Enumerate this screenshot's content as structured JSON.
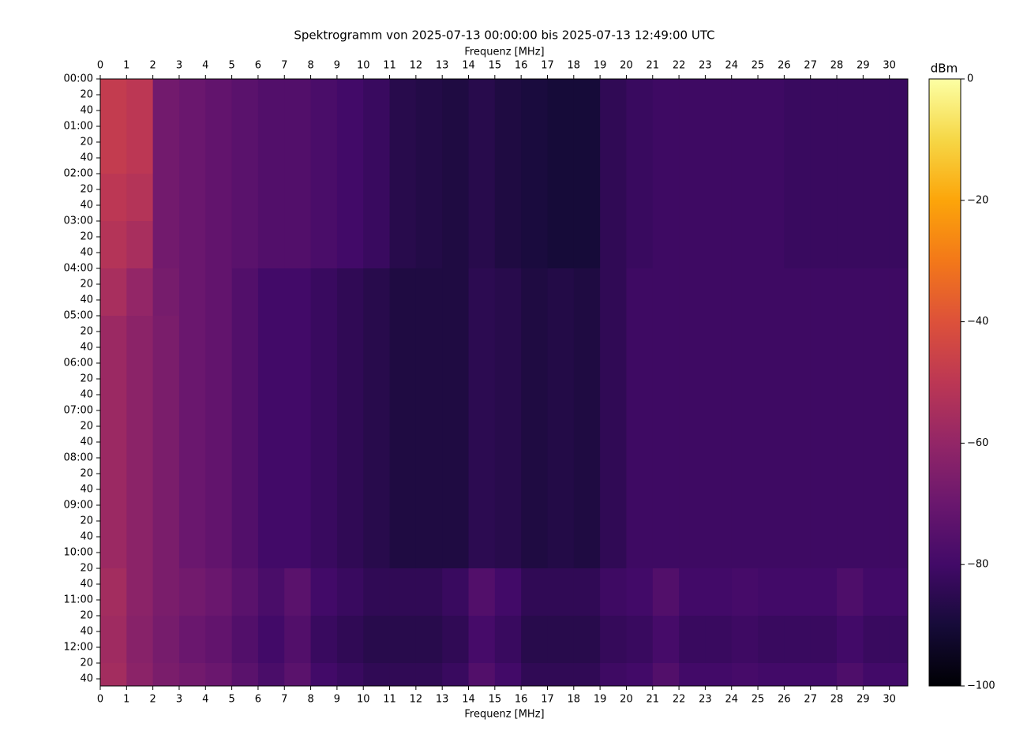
{
  "chart_data": {
    "type": "heatmap",
    "title": "Spektrogramm von 2025-07-13 00:00:00 bis 2025-07-13 12:49:00 UTC",
    "xlabel": "Frequenz [MHz]",
    "xlabel_top": "Frequenz [MHz]",
    "colorbar_label": "dBm",
    "colormap": "inferno",
    "y_inverted": true,
    "x_bins": [
      0,
      1,
      2,
      3,
      4,
      5,
      6,
      7,
      8,
      9,
      10,
      11,
      12,
      13,
      14,
      15,
      16,
      17,
      18,
      19,
      20,
      21,
      22,
      23,
      24,
      25,
      26,
      27,
      28,
      29,
      30,
      30.7
    ],
    "y_bins": [
      0,
      60,
      120,
      180,
      240,
      300,
      360,
      420,
      480,
      540,
      600,
      620,
      680,
      740,
      769
    ],
    "values": [
      [
        -48,
        -50,
        -68,
        -70,
        -72,
        -74,
        -76,
        -76,
        -78,
        -80,
        -82,
        -86,
        -87,
        -88,
        -86,
        -88,
        -89,
        -90,
        -90,
        -84,
        -82,
        -81,
        -81,
        -81,
        -81,
        -81,
        -82,
        -82,
        -82,
        -82,
        -82
      ],
      [
        -48,
        -50,
        -68,
        -70,
        -72,
        -74,
        -76,
        -76,
        -78,
        -80,
        -82,
        -86,
        -87,
        -88,
        -86,
        -88,
        -89,
        -90,
        -90,
        -84,
        -82,
        -81,
        -81,
        -81,
        -81,
        -81,
        -82,
        -82,
        -82,
        -82,
        -82
      ],
      [
        -50,
        -52,
        -68,
        -70,
        -72,
        -74,
        -76,
        -76,
        -78,
        -80,
        -82,
        -86,
        -87,
        -88,
        -86,
        -88,
        -89,
        -90,
        -90,
        -84,
        -82,
        -81,
        -81,
        -81,
        -81,
        -81,
        -82,
        -82,
        -82,
        -82,
        -82
      ],
      [
        -52,
        -55,
        -68,
        -70,
        -72,
        -74,
        -76,
        -76,
        -78,
        -80,
        -82,
        -86,
        -87,
        -88,
        -86,
        -88,
        -89,
        -90,
        -90,
        -84,
        -82,
        -81,
        -81,
        -81,
        -81,
        -81,
        -82,
        -82,
        -82,
        -82,
        -82
      ],
      [
        -55,
        -60,
        -67,
        -70,
        -72,
        -76,
        -80,
        -80,
        -82,
        -84,
        -86,
        -88,
        -88,
        -88,
        -85,
        -86,
        -88,
        -87,
        -88,
        -84,
        -81,
        -81,
        -81,
        -81,
        -81,
        -81,
        -81,
        -81,
        -81,
        -81,
        -81
      ],
      [
        -58,
        -62,
        -66,
        -70,
        -72,
        -76,
        -80,
        -80,
        -82,
        -84,
        -86,
        -88,
        -88,
        -88,
        -85,
        -86,
        -88,
        -87,
        -88,
        -84,
        -81,
        -81,
        -81,
        -81,
        -81,
        -81,
        -81,
        -81,
        -81,
        -81,
        -81
      ],
      [
        -58,
        -62,
        -66,
        -70,
        -72,
        -76,
        -80,
        -80,
        -82,
        -84,
        -86,
        -88,
        -88,
        -88,
        -85,
        -86,
        -88,
        -87,
        -88,
        -84,
        -81,
        -81,
        -81,
        -81,
        -81,
        -81,
        -81,
        -81,
        -81,
        -81,
        -81
      ],
      [
        -58,
        -62,
        -66,
        -70,
        -72,
        -76,
        -80,
        -80,
        -82,
        -84,
        -86,
        -88,
        -88,
        -88,
        -85,
        -86,
        -88,
        -87,
        -88,
        -84,
        -81,
        -81,
        -81,
        -81,
        -81,
        -81,
        -81,
        -81,
        -81,
        -81,
        -81
      ],
      [
        -58,
        -62,
        -66,
        -70,
        -72,
        -76,
        -80,
        -80,
        -82,
        -84,
        -86,
        -88,
        -88,
        -88,
        -85,
        -86,
        -88,
        -87,
        -88,
        -84,
        -81,
        -81,
        -81,
        -81,
        -81,
        -81,
        -81,
        -81,
        -81,
        -81,
        -81
      ],
      [
        -58,
        -62,
        -66,
        -70,
        -72,
        -76,
        -80,
        -80,
        -82,
        -84,
        -86,
        -88,
        -88,
        -88,
        -85,
        -86,
        -88,
        -87,
        -88,
        -84,
        -81,
        -81,
        -81,
        -81,
        -81,
        -81,
        -81,
        -81,
        -81,
        -81,
        -81
      ],
      [
        -58,
        -62,
        -66,
        -70,
        -72,
        -76,
        -80,
        -80,
        -82,
        -84,
        -86,
        -88,
        -88,
        -88,
        -85,
        -86,
        -88,
        -87,
        -88,
        -84,
        -81,
        -81,
        -81,
        -81,
        -81,
        -81,
        -81,
        -81,
        -81,
        -81,
        -81
      ],
      [
        -56,
        -62,
        -66,
        -68,
        -70,
        -74,
        -78,
        -74,
        -80,
        -82,
        -84,
        -84,
        -84,
        -82,
        -76,
        -80,
        -84,
        -84,
        -84,
        -81,
        -80,
        -76,
        -80,
        -80,
        -79,
        -80,
        -80,
        -80,
        -77,
        -80,
        -80
      ],
      [
        -57,
        -63,
        -67,
        -70,
        -72,
        -76,
        -80,
        -76,
        -82,
        -84,
        -86,
        -86,
        -86,
        -84,
        -79,
        -82,
        -86,
        -86,
        -86,
        -83,
        -82,
        -79,
        -82,
        -82,
        -81,
        -82,
        -82,
        -82,
        -80,
        -82,
        -82
      ],
      [
        -56,
        -62,
        -66,
        -68,
        -70,
        -74,
        -78,
        -74,
        -80,
        -82,
        -84,
        -84,
        -84,
        -82,
        -76,
        -80,
        -84,
        -84,
        -84,
        -81,
        -80,
        -76,
        -80,
        -80,
        -79,
        -80,
        -80,
        -80,
        -77,
        -80,
        -80
      ]
    ],
    "xlim": [
      0,
      30.7
    ],
    "xticks": [
      0,
      1,
      2,
      3,
      4,
      5,
      6,
      7,
      8,
      9,
      10,
      11,
      12,
      13,
      14,
      15,
      16,
      17,
      18,
      19,
      20,
      21,
      22,
      23,
      24,
      25,
      26,
      27,
      28,
      29,
      30
    ],
    "ylim": [
      0,
      769
    ],
    "yticks": [
      {
        "value": 0,
        "label": "00:00"
      },
      20,
      40,
      {
        "value": 60,
        "label": "01:00"
      },
      {
        "value": 80,
        "label": "20"
      },
      {
        "value": 100,
        "label": "40"
      },
      {
        "value": 120,
        "label": "02:00"
      },
      {
        "value": 140,
        "label": "20"
      },
      {
        "value": 160,
        "label": "40"
      },
      {
        "value": 180,
        "label": "03:00"
      },
      {
        "value": 200,
        "label": "20"
      },
      {
        "value": 220,
        "label": "40"
      },
      {
        "value": 240,
        "label": "04:00"
      },
      {
        "value": 260,
        "label": "20"
      },
      {
        "value": 280,
        "label": "40"
      },
      {
        "value": 300,
        "label": "05:00"
      },
      {
        "value": 320,
        "label": "20"
      },
      {
        "value": 340,
        "label": "40"
      },
      {
        "value": 360,
        "label": "06:00"
      },
      {
        "value": 380,
        "label": "20"
      },
      {
        "value": 400,
        "label": "40"
      },
      {
        "value": 420,
        "label": "07:00"
      },
      {
        "value": 440,
        "label": "20"
      },
      {
        "value": 460,
        "label": "40"
      },
      {
        "value": 480,
        "label": "08:00"
      },
      {
        "value": 500,
        "label": "20"
      },
      {
        "value": 520,
        "label": "40"
      },
      {
        "value": 540,
        "label": "09:00"
      },
      {
        "value": 560,
        "label": "20"
      },
      {
        "value": 580,
        "label": "40"
      },
      {
        "value": 600,
        "label": "10:00"
      },
      {
        "value": 620,
        "label": "20"
      },
      {
        "value": 640,
        "label": "40"
      },
      {
        "value": 660,
        "label": "11:00"
      },
      {
        "value": 680,
        "label": "20"
      },
      {
        "value": 700,
        "label": "40"
      },
      {
        "value": 720,
        "label": "12:00"
      },
      {
        "value": 740,
        "label": "20"
      },
      {
        "value": 760,
        "label": "40"
      }
    ],
    "clim": [
      -100,
      0
    ],
    "cticks": [
      0,
      {
        "value": -20,
        "label": "−20"
      },
      {
        "value": -40,
        "label": "−40"
      },
      {
        "value": -60,
        "label": "−60"
      },
      {
        "value": -80,
        "label": "−80"
      },
      {
        "value": -100,
        "label": "−100"
      }
    ]
  }
}
